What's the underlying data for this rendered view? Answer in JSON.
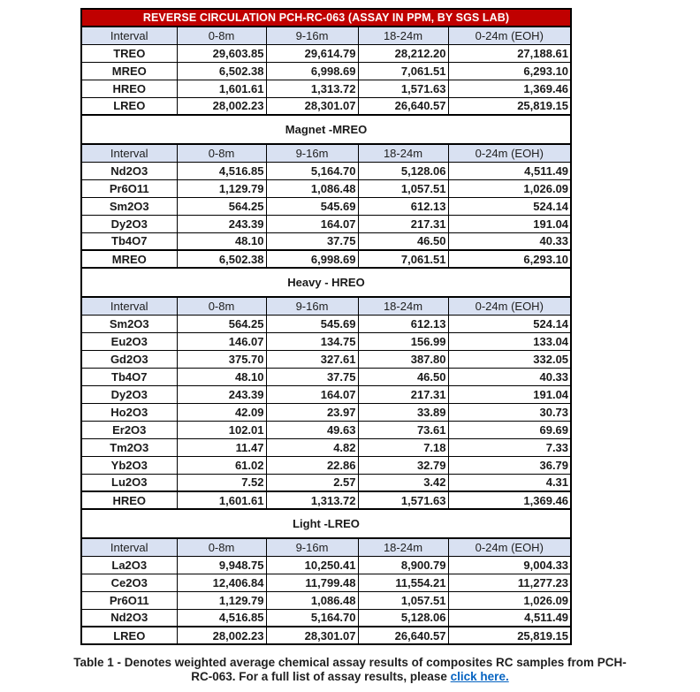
{
  "title": "REVERSE CIRCULATION PCH-RC-063 (ASSAY IN PPM, BY SGS LAB)",
  "colors": {
    "title_bg": "#C00000",
    "title_text": "#FFFFFF",
    "header_bg": "#D9E1F2",
    "border": "#000000",
    "link": "#0563C1"
  },
  "columns": [
    "Interval",
    "0-8m",
    "9-16m",
    "18-24m",
    "0-24m (EOH)"
  ],
  "sections": [
    {
      "name": "summary",
      "section_title": null,
      "rows": [
        {
          "label": "TREO",
          "values": [
            "29,603.85",
            "29,614.79",
            "28,212.20",
            "27,188.61"
          ]
        },
        {
          "label": "MREO",
          "values": [
            "6,502.38",
            "6,998.69",
            "7,061.51",
            "6,293.10"
          ]
        },
        {
          "label": "HREO",
          "values": [
            "1,601.61",
            "1,313.72",
            "1,571.63",
            "1,369.46"
          ]
        },
        {
          "label": "LREO",
          "values": [
            "28,002.23",
            "28,301.07",
            "26,640.57",
            "25,819.15"
          ]
        }
      ]
    },
    {
      "name": "magnet-mreo",
      "section_title": "Magnet -MREO",
      "rows": [
        {
          "label": "Nd2O3",
          "values": [
            "4,516.85",
            "5,164.70",
            "5,128.06",
            "4,511.49"
          ]
        },
        {
          "label": "Pr6O11",
          "values": [
            "1,129.79",
            "1,086.48",
            "1,057.51",
            "1,026.09"
          ]
        },
        {
          "label": "Sm2O3",
          "values": [
            "564.25",
            "545.69",
            "612.13",
            "524.14"
          ]
        },
        {
          "label": "Dy2O3",
          "values": [
            "243.39",
            "164.07",
            "217.31",
            "191.04"
          ]
        },
        {
          "label": "Tb4O7",
          "values": [
            "48.10",
            "37.75",
            "46.50",
            "40.33"
          ]
        },
        {
          "label": "MREO",
          "values": [
            "6,502.38",
            "6,998.69",
            "7,061.51",
            "6,293.10"
          ]
        }
      ]
    },
    {
      "name": "heavy-hreo",
      "section_title": "Heavy - HREO",
      "rows": [
        {
          "label": "Sm2O3",
          "values": [
            "564.25",
            "545.69",
            "612.13",
            "524.14"
          ]
        },
        {
          "label": "Eu2O3",
          "values": [
            "146.07",
            "134.75",
            "156.99",
            "133.04"
          ]
        },
        {
          "label": "Gd2O3",
          "values": [
            "375.70",
            "327.61",
            "387.80",
            "332.05"
          ]
        },
        {
          "label": "Tb4O7",
          "values": [
            "48.10",
            "37.75",
            "46.50",
            "40.33"
          ]
        },
        {
          "label": "Dy2O3",
          "values": [
            "243.39",
            "164.07",
            "217.31",
            "191.04"
          ]
        },
        {
          "label": "Ho2O3",
          "values": [
            "42.09",
            "23.97",
            "33.89",
            "30.73"
          ]
        },
        {
          "label": "Er2O3",
          "values": [
            "102.01",
            "49.63",
            "73.61",
            "69.69"
          ]
        },
        {
          "label": "Tm2O3",
          "values": [
            "11.47",
            "4.82",
            "7.18",
            "7.33"
          ]
        },
        {
          "label": "Yb2O3",
          "values": [
            "61.02",
            "22.86",
            "32.79",
            "36.79"
          ]
        },
        {
          "label": "Lu2O3",
          "values": [
            "7.52",
            "2.57",
            "3.42",
            "4.31"
          ]
        },
        {
          "label": "HREO",
          "values": [
            "1,601.61",
            "1,313.72",
            "1,571.63",
            "1,369.46"
          ]
        }
      ]
    },
    {
      "name": "light-lreo",
      "section_title": "Light -LREO",
      "rows": [
        {
          "label": "La2O3",
          "values": [
            "9,948.75",
            "10,250.41",
            "8,900.79",
            "9,004.33"
          ]
        },
        {
          "label": "Ce2O3",
          "values": [
            "12,406.84",
            "11,799.48",
            "11,554.21",
            "11,277.23"
          ]
        },
        {
          "label": "Pr6O11",
          "values": [
            "1,129.79",
            "1,086.48",
            "1,057.51",
            "1,026.09"
          ]
        },
        {
          "label": "Nd2O3",
          "values": [
            "4,516.85",
            "5,164.70",
            "5,128.06",
            "4,511.49"
          ]
        },
        {
          "label": "LREO",
          "values": [
            "28,002.23",
            "28,301.07",
            "26,640.57",
            "25,819.15"
          ]
        }
      ]
    }
  ],
  "caption": {
    "line1": "Table 1 - Denotes weighted average chemical assay results of composites RC samples from PCH-",
    "line2_prefix": "RC-063. For a full list of assay results, please ",
    "link_text": "click here."
  }
}
